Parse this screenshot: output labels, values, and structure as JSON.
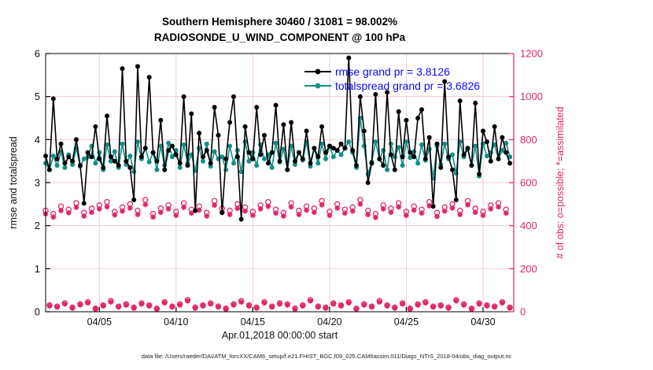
{
  "colors": {
    "rmse": "#000000",
    "totalspread": "#0f8f86",
    "obs": "#e0256b",
    "legend_text": "#0a0aff",
    "grid": "#f2ccd8",
    "axis": "#000000"
  },
  "footer_text": "data file: /Users/raeder/DAI/ATM_forcXX/CAM6_setup/f.e21.FHIST_BGC.f09_025.CAM6assim.011/Diags_NTrS_2018-04/obs_diag_output.nc",
  "chart_data": {
    "type": "line",
    "title": "Southern Hemisphere 30460 / 31081 = 98.002%",
    "subtitle": "RADIOSONDE_U_WIND_COMPONENT @ 100 hPa",
    "xlabel": "Apr.01,2018 00:00:00 start",
    "ylabel_left": "rmse and totalspread",
    "ylabel_right": "# of obs: o=possible; *=assimilated",
    "grid": true,
    "legend_position": "top-right-inside",
    "x_axis": {
      "range_days": [
        1.5,
        32
      ],
      "tick_days": [
        5,
        10,
        15,
        20,
        25,
        30
      ],
      "tick_labels": [
        "04/05",
        "04/10",
        "04/15",
        "04/20",
        "04/25",
        "04/30"
      ]
    },
    "y_left": {
      "range": [
        0,
        6
      ],
      "ticks": [
        0,
        1,
        2,
        3,
        4,
        5,
        6
      ]
    },
    "y_right": {
      "range": [
        0,
        1200
      ],
      "ticks": [
        0,
        200,
        400,
        600,
        800,
        1000,
        1200
      ]
    },
    "x_time": {
      "start_day": 1.5,
      "step_day": 0.25,
      "count": 122
    },
    "series": [
      {
        "name": "rmse",
        "legend": "rmse grand pr = 3.8126",
        "grand_mean": 3.8126,
        "axis": "left",
        "color": "#000000",
        "marker": "filled-circle",
        "values": [
          3.62,
          3.3,
          4.95,
          3.55,
          3.9,
          3.45,
          3.6,
          3.5,
          4.0,
          3.4,
          2.52,
          3.7,
          3.6,
          4.3,
          3.55,
          3.35,
          4.55,
          3.6,
          3.5,
          3.4,
          5.65,
          3.5,
          3.35,
          2.6,
          5.7,
          3.6,
          3.8,
          5.45,
          3.7,
          3.5,
          4.45,
          3.3,
          3.75,
          3.85,
          3.65,
          3.45,
          5.0,
          3.4,
          4.6,
          2.35,
          4.15,
          3.6,
          3.75,
          3.45,
          4.75,
          4.1,
          2.3,
          3.55,
          4.4,
          5.0,
          3.6,
          2.15,
          4.3,
          3.7,
          3.55,
          4.75,
          3.65,
          4.1,
          3.45,
          3.7,
          4.8,
          3.5,
          4.35,
          3.3,
          4.4,
          3.5,
          3.7,
          3.55,
          4.2,
          3.45,
          3.8,
          3.6,
          4.3,
          3.7,
          3.85,
          3.8,
          3.75,
          3.9,
          3.8,
          5.9,
          3.75,
          3.4,
          5.0,
          4.2,
          3.0,
          3.45,
          5.05,
          3.55,
          3.4,
          5.1,
          3.65,
          3.3,
          4.65,
          3.6,
          4.45,
          3.7,
          3.6,
          4.5,
          4.7,
          3.55,
          4.05,
          2.45,
          3.9,
          3.35,
          5.35,
          3.6,
          3.3,
          2.6,
          4.9,
          3.65,
          3.8,
          3.4,
          4.85,
          3.2,
          4.2,
          3.95,
          3.5,
          4.3,
          3.55,
          4.05,
          3.7,
          3.45
        ]
      },
      {
        "name": "totalspread",
        "legend": "totalspread grand pr = 3.6826",
        "grand_mean": 3.6826,
        "axis": "left",
        "color": "#0f8f86",
        "marker": "filled-circle",
        "values": [
          3.45,
          3.3,
          3.62,
          3.4,
          3.72,
          3.35,
          3.65,
          3.42,
          3.8,
          3.38,
          3.55,
          3.6,
          3.85,
          3.45,
          3.7,
          3.3,
          3.88,
          3.5,
          3.72,
          3.35,
          3.9,
          3.42,
          3.62,
          3.25,
          3.95,
          3.55,
          3.8,
          3.48,
          3.7,
          3.3,
          3.85,
          3.4,
          3.92,
          3.6,
          3.75,
          3.35,
          3.88,
          3.45,
          3.65,
          3.28,
          3.8,
          3.5,
          3.9,
          3.38,
          3.72,
          3.55,
          3.6,
          3.3,
          3.85,
          3.45,
          3.75,
          3.25,
          3.95,
          3.5,
          3.7,
          3.4,
          3.88,
          3.55,
          3.65,
          3.35,
          3.92,
          3.48,
          3.78,
          3.3,
          3.85,
          3.42,
          3.7,
          3.52,
          3.95,
          3.38,
          3.8,
          3.45,
          3.9,
          3.55,
          3.85,
          3.6,
          3.75,
          3.65,
          3.8,
          3.95,
          3.7,
          3.35,
          4.5,
          3.85,
          3.2,
          3.48,
          3.95,
          3.55,
          3.75,
          3.3,
          3.9,
          3.6,
          3.82,
          3.4,
          3.95,
          3.58,
          3.72,
          3.45,
          3.88,
          3.52,
          3.78,
          3.1,
          3.85,
          3.42,
          3.9,
          3.55,
          3.65,
          3.22,
          3.95,
          3.6,
          3.78,
          3.4,
          3.85,
          3.15,
          3.9,
          3.62,
          3.7,
          3.88,
          3.55,
          3.75,
          3.92,
          3.6
        ]
      }
    ],
    "obs_counts": {
      "axis": "right",
      "color": "#e0256b",
      "possible": {
        "marker": "open-circle",
        "values": [
          470,
          30,
          455,
          25,
          490,
          40,
          475,
          20,
          505,
          35,
          460,
          45,
          480,
          15,
          495,
          30,
          510,
          50,
          465,
          25,
          485,
          35,
          500,
          20,
          470,
          40,
          520,
          30,
          455,
          15,
          480,
          45,
          495,
          25,
          465,
          35,
          505,
          55,
          475,
          20,
          490,
          30,
          460,
          40,
          515,
          25,
          480,
          15,
          470,
          35,
          500,
          50,
          485,
          30,
          465,
          20,
          495,
          45,
          510,
          25,
          475,
          40,
          460,
          35,
          505,
          15,
          470,
          30,
          490,
          55,
          480,
          25,
          515,
          20,
          465,
          40,
          500,
          30,
          475,
          45,
          485,
          15,
          520,
          35,
          470,
          25,
          455,
          50,
          495,
          30,
          480,
          20,
          505,
          40,
          465,
          15,
          490,
          35,
          475,
          45,
          510,
          25,
          460,
          30,
          485,
          20,
          500,
          55,
          470,
          35,
          515,
          15,
          480,
          40,
          465,
          30,
          495,
          25,
          505,
          45,
          475,
          20
        ]
      },
      "assimilated": {
        "marker": "asterisk",
        "values": [
          455,
          27,
          440,
          22,
          470,
          36,
          460,
          17,
          485,
          32,
          445,
          41,
          462,
          13,
          478,
          27,
          488,
          45,
          450,
          22,
          468,
          31,
          482,
          17,
          452,
          36,
          498,
          27,
          440,
          12,
          462,
          41,
          478,
          22,
          448,
          31,
          485,
          50,
          458,
          17,
          472,
          27,
          445,
          36,
          495,
          22,
          462,
          12,
          452,
          31,
          480,
          45,
          468,
          27,
          448,
          17,
          478,
          41,
          490,
          22,
          458,
          36,
          445,
          31,
          487,
          12,
          452,
          27,
          472,
          50,
          462,
          22,
          497,
          17,
          448,
          36,
          482,
          27,
          458,
          41,
          468,
          12,
          500,
          31,
          452,
          22,
          438,
          45,
          478,
          27,
          462,
          17,
          487,
          36,
          448,
          12,
          472,
          31,
          458,
          41,
          492,
          22,
          443,
          27,
          468,
          17,
          482,
          50,
          452,
          31,
          497,
          12,
          462,
          36,
          448,
          27,
          478,
          22,
          487,
          41,
          458,
          17
        ]
      }
    }
  }
}
